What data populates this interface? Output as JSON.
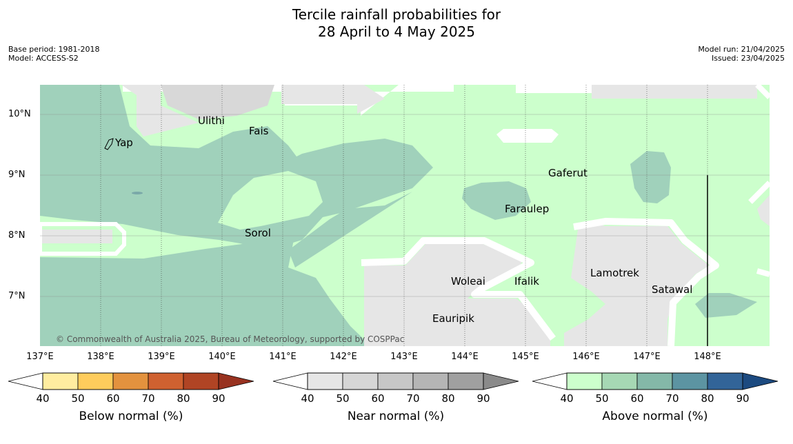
{
  "title_line1": "Tercile rainfall probabilities for",
  "title_line2": "28 April to 4 May 2025",
  "base_period": "Base period: 1981-2018",
  "model": "Model: ACCESS-S2",
  "model_run": "Model run: 21/04/2025",
  "issued": "Issued: 23/04/2025",
  "copyright": "© Commonwealth of Australia 2025, Bureau of Meteorology, supported by COSPPac",
  "lat_labels": [
    "10°N",
    "9°N",
    "8°N",
    "7°N"
  ],
  "lon_labels": [
    "137°E",
    "138°E",
    "139°E",
    "140°E",
    "141°E",
    "142°E",
    "143°E",
    "144°E",
    "145°E",
    "146°E",
    "147°E",
    "148°E"
  ],
  "places": {
    "ulithi": "Ulithi",
    "fais": "Fais",
    "yap": "Yap",
    "gaferut": "Gaferut",
    "faraulep": "Faraulep",
    "sorol": "Sorol",
    "woleai": "Woleai",
    "ifalik": "Ifalik",
    "lamotrek": "Lamotrek",
    "satawal": "Satawal",
    "eauripik": "Eauripik"
  },
  "colorbars": [
    {
      "name": "Below normal (%)",
      "ticks": [
        "40",
        "50",
        "60",
        "70",
        "80",
        "90"
      ],
      "colors": [
        "#ffeda0",
        "#fecc5c",
        "#e3923e",
        "#cf6130",
        "#b04424",
        "#983220"
      ]
    },
    {
      "name": "Near normal (%)",
      "ticks": [
        "40",
        "50",
        "60",
        "70",
        "80",
        "90"
      ],
      "colors": [
        "#e6e6e6",
        "#d6d6d6",
        "#c7c7c7",
        "#b5b5b5",
        "#a0a0a0",
        "#8a8a8a"
      ]
    },
    {
      "name": "Above normal (%)",
      "ticks": [
        "40",
        "50",
        "60",
        "70",
        "80",
        "90"
      ],
      "colors": [
        "#ccffcc",
        "#a6d8b4",
        "#84b8a8",
        "#5c94a2",
        "#326498",
        "#1c4a80"
      ]
    }
  ],
  "colors": {
    "green_light": "#ccffcc",
    "green_mid": "#a0d1bb",
    "grey": "#e6e6e6",
    "grey_dark": "#d8d8d8",
    "white": "#ffffff"
  }
}
